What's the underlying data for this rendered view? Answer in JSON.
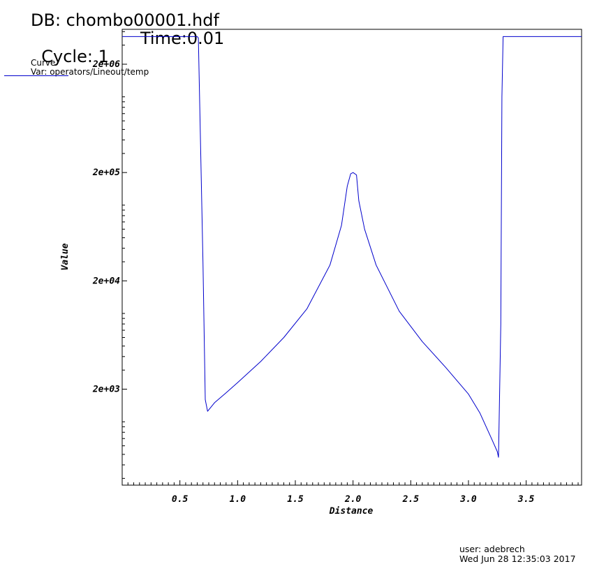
{
  "header": {
    "db": "DB: chombo00001.hdf",
    "cycle": "Cycle: 1",
    "time": "Time:0.01"
  },
  "legend": {
    "title": "Curve",
    "var": "Var: operators/Lineout/temp",
    "line_color": "#0000cc"
  },
  "footer": {
    "user": "user: adebrech",
    "date": "Wed Jun 28 12:35:03 2017"
  },
  "chart_data": {
    "type": "line",
    "xlabel": "Distance",
    "ylabel": "Value",
    "xlim": [
      0.0,
      3.98
    ],
    "ylim": [
      260,
      4200000
    ],
    "yscale": "log",
    "grid": false,
    "legend_position": "top-left",
    "x_ticks": [
      0.5,
      1.0,
      1.5,
      2.0,
      2.5,
      3.0,
      3.5
    ],
    "x_tick_labels": [
      "0.5",
      "1.0",
      "1.5",
      "2.0",
      "2.5",
      "3.0",
      "3.5"
    ],
    "y_ticks": [
      2000,
      20000,
      200000,
      2000000
    ],
    "y_tick_labels": [
      "2e+03",
      "2e+04",
      "2e+05",
      "2e+06"
    ],
    "series": [
      {
        "color": "#0000cc",
        "x": [
          0.0,
          0.65,
          0.66,
          0.7,
          0.72,
          0.74,
          0.8,
          0.9,
          1.0,
          1.2,
          1.4,
          1.6,
          1.8,
          1.9,
          1.95,
          1.98,
          2.0,
          2.03,
          2.05,
          2.1,
          2.2,
          2.4,
          2.6,
          2.8,
          3.0,
          3.1,
          3.2,
          3.25,
          3.26,
          3.28,
          3.29,
          3.3,
          3.98
        ],
        "y": [
          3600000,
          3600000,
          3500000,
          30000,
          1600,
          1250,
          1500,
          1850,
          2300,
          3600,
          6000,
          11000,
          28000,
          65000,
          150000,
          195000,
          200000,
          190000,
          110000,
          60000,
          28000,
          10500,
          5500,
          3200,
          1800,
          1200,
          700,
          530,
          470,
          8000,
          1000000,
          3600000,
          3600000
        ]
      }
    ]
  }
}
